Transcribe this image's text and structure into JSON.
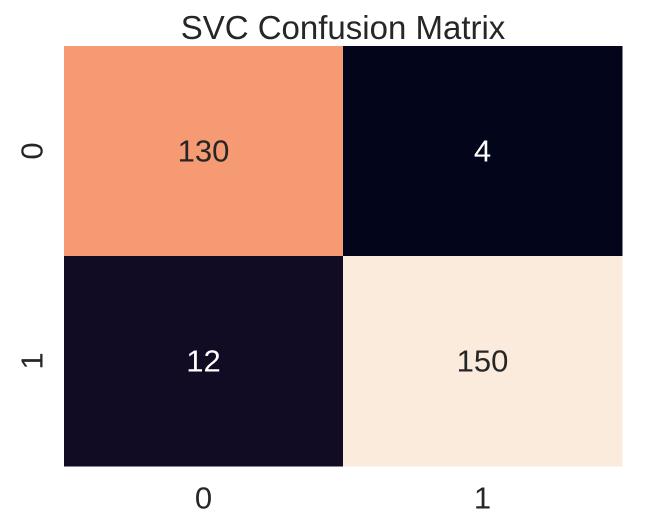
{
  "chart_data": {
    "type": "heatmap",
    "title": "SVC Confusion Matrix",
    "xlabel": "",
    "ylabel": "",
    "x_categories": [
      "0",
      "1"
    ],
    "y_categories": [
      "0",
      "1"
    ],
    "values": [
      [
        130,
        4
      ],
      [
        12,
        150
      ]
    ],
    "annotations": true,
    "colorbar": false,
    "colormap": "rocket",
    "vmin": 4,
    "vmax": 150,
    "grid": false
  }
}
